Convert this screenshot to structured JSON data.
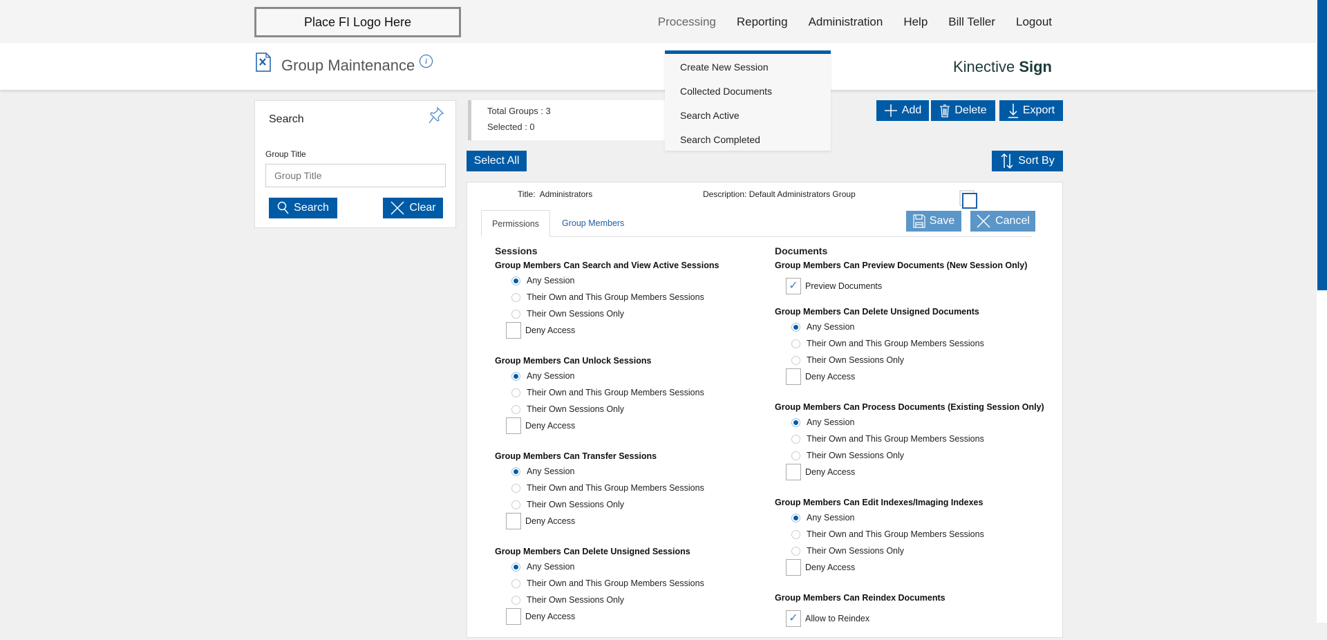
{
  "topbar": {
    "logo": "Place FI Logo Here",
    "nav": [
      "Processing",
      "Reporting",
      "Administration",
      "Help",
      "Bill Teller",
      "Logout"
    ],
    "active": "Processing"
  },
  "header": {
    "title": "Group Maintenance",
    "brand_light": "Kinective ",
    "brand_bold": "Sign"
  },
  "dropdown": {
    "items": [
      "Create New Session",
      "Collected Documents",
      "Search Active",
      "Search Completed"
    ]
  },
  "search": {
    "title": "Search",
    "label": "Group Title",
    "placeholder": "Group Title",
    "search_btn": "Search",
    "clear_btn": "Clear"
  },
  "stats": {
    "total": "Total Groups : 3",
    "selected": "Selected : 0"
  },
  "toolbar": {
    "add": "Add",
    "delete": "Delete",
    "export": "Export",
    "select_all": "Select All",
    "sort_by": "Sort By"
  },
  "group": {
    "title_label": "Title:",
    "title": "Administrators",
    "desc_label": "Description:",
    "desc": "Default Administrators Group",
    "tabs": [
      "Permissions",
      "Group Members"
    ],
    "save": "Save",
    "cancel": "Cancel"
  },
  "options": [
    "Any Session",
    "Their Own and This Group Members Sessions",
    "Their Own Sessions Only"
  ],
  "deny": "Deny Access",
  "sessions": {
    "title": "Sessions",
    "groups": [
      "Group Members Can Search and View Active Sessions",
      "Group Members Can Unlock Sessions",
      "Group Members Can Transfer Sessions",
      "Group Members Can Delete Unsigned Sessions"
    ]
  },
  "documents": {
    "title": "Documents",
    "preview": {
      "heading": "Group Members Can Preview Documents (New Session Only)",
      "label": "Preview Documents",
      "checked": true
    },
    "groups": [
      "Group Members Can Delete Unsigned Documents",
      "Group Members Can Process Documents (Existing Session Only)",
      "Group Members Can Edit Indexes/Imaging Indexes"
    ],
    "reindex": {
      "heading": "Group Members Can Reindex Documents",
      "label": "Allow to Reindex",
      "checked": true
    }
  },
  "colors": {
    "primary": "#005ba6",
    "disabled_btn": "#5b96c8"
  }
}
